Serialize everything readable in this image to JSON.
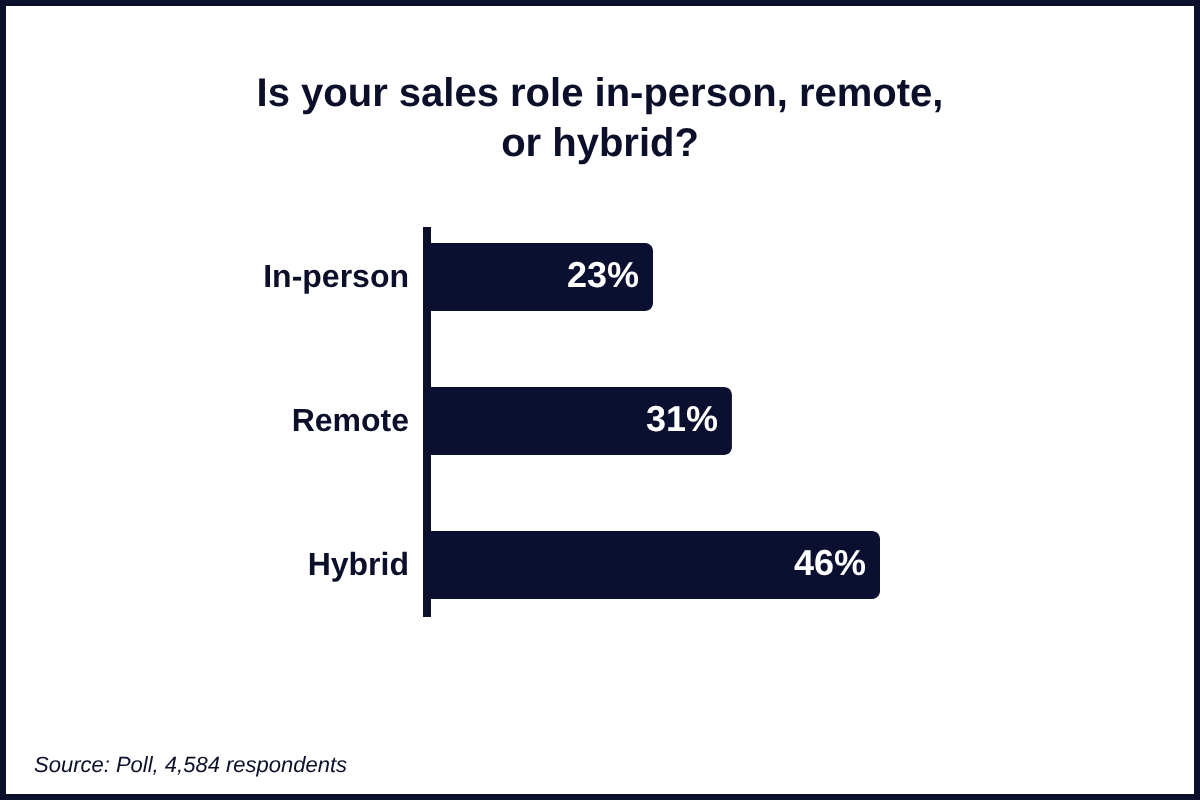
{
  "chart_data": {
    "type": "bar",
    "orientation": "horizontal",
    "title": "Is your sales role in-person, remote, or hybrid?",
    "categories": [
      "In-person",
      "Remote",
      "Hybrid"
    ],
    "values": [
      23,
      31,
      46
    ],
    "value_labels": [
      "23%",
      "31%",
      "46%"
    ],
    "color": "#0c1030",
    "tick_labels": "y",
    "annotations": [
      "Source: Poll, 4,584 respondents"
    ]
  }
}
